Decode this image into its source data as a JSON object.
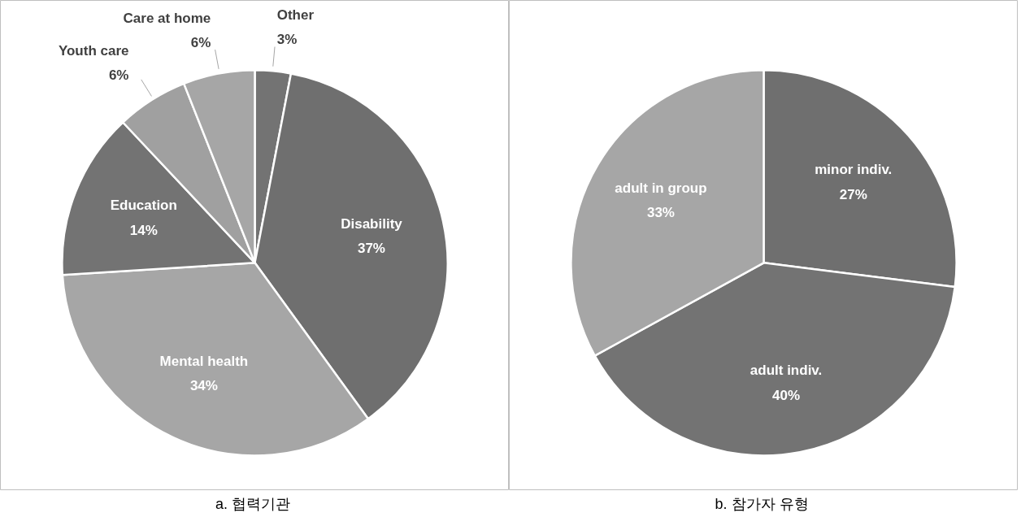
{
  "chart_data": [
    {
      "type": "pie",
      "title": "a.  협력기관",
      "categories": [
        "Other",
        "Disability",
        "Mental health",
        "Education",
        "Youth care",
        "Care at home"
      ],
      "values": [
        3,
        37,
        34,
        14,
        6,
        6
      ],
      "value_labels": [
        "3%",
        "37%",
        "34%",
        "14%",
        "6%",
        "6%"
      ],
      "colors": [
        "#737373",
        "#6f6f6f",
        "#a6a6a6",
        "#737373",
        "#a0a0a0",
        "#a6a6a6"
      ]
    },
    {
      "type": "pie",
      "title": "b.  참가자 유형",
      "categories": [
        "minor indiv.",
        "adult indiv.",
        "adult in group"
      ],
      "values": [
        27,
        40,
        33
      ],
      "value_labels": [
        "27%",
        "40%",
        "33%"
      ],
      "colors": [
        "#6f6f6f",
        "#737373",
        "#a6a6a6"
      ]
    }
  ]
}
